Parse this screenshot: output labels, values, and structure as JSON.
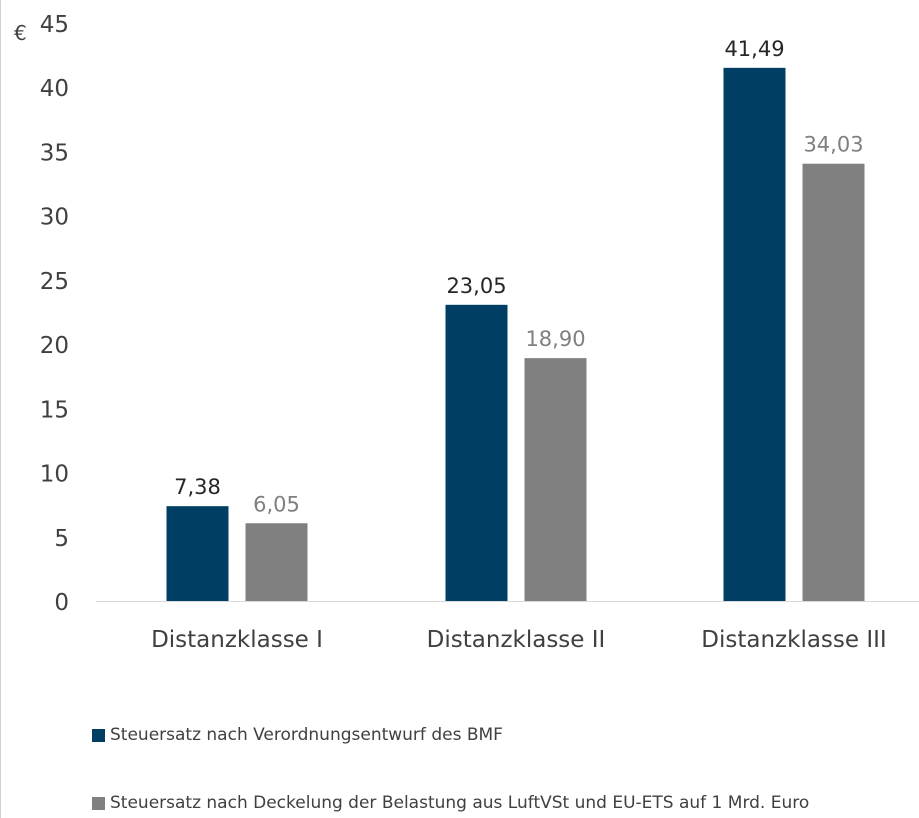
{
  "chart_data": {
    "type": "bar",
    "unit": "€",
    "categories": [
      "Distanzklasse I",
      "Distanzklasse II",
      "Distanzklasse III"
    ],
    "series": [
      {
        "name": "Steuersatz nach Verordnungsentwurf des BMF",
        "values": [
          7.38,
          23.05,
          41.49
        ],
        "labels": [
          "7,38",
          "23,05",
          "41,49"
        ],
        "color": "#003f63"
      },
      {
        "name": "Steuersatz nach Deckelung der Belastung aus LuftVSt und EU-ETS auf 1 Mrd. Euro",
        "values": [
          6.05,
          18.9,
          34.03
        ],
        "labels": [
          "6,05",
          "18,90",
          "34,03"
        ],
        "color": "#808080"
      }
    ],
    "yticks": [
      "0",
      "5",
      "10",
      "15",
      "20",
      "25",
      "30",
      "35",
      "40",
      "45"
    ],
    "ylim": [
      0,
      45
    ],
    "grid": false,
    "legend_position": "bottom"
  }
}
